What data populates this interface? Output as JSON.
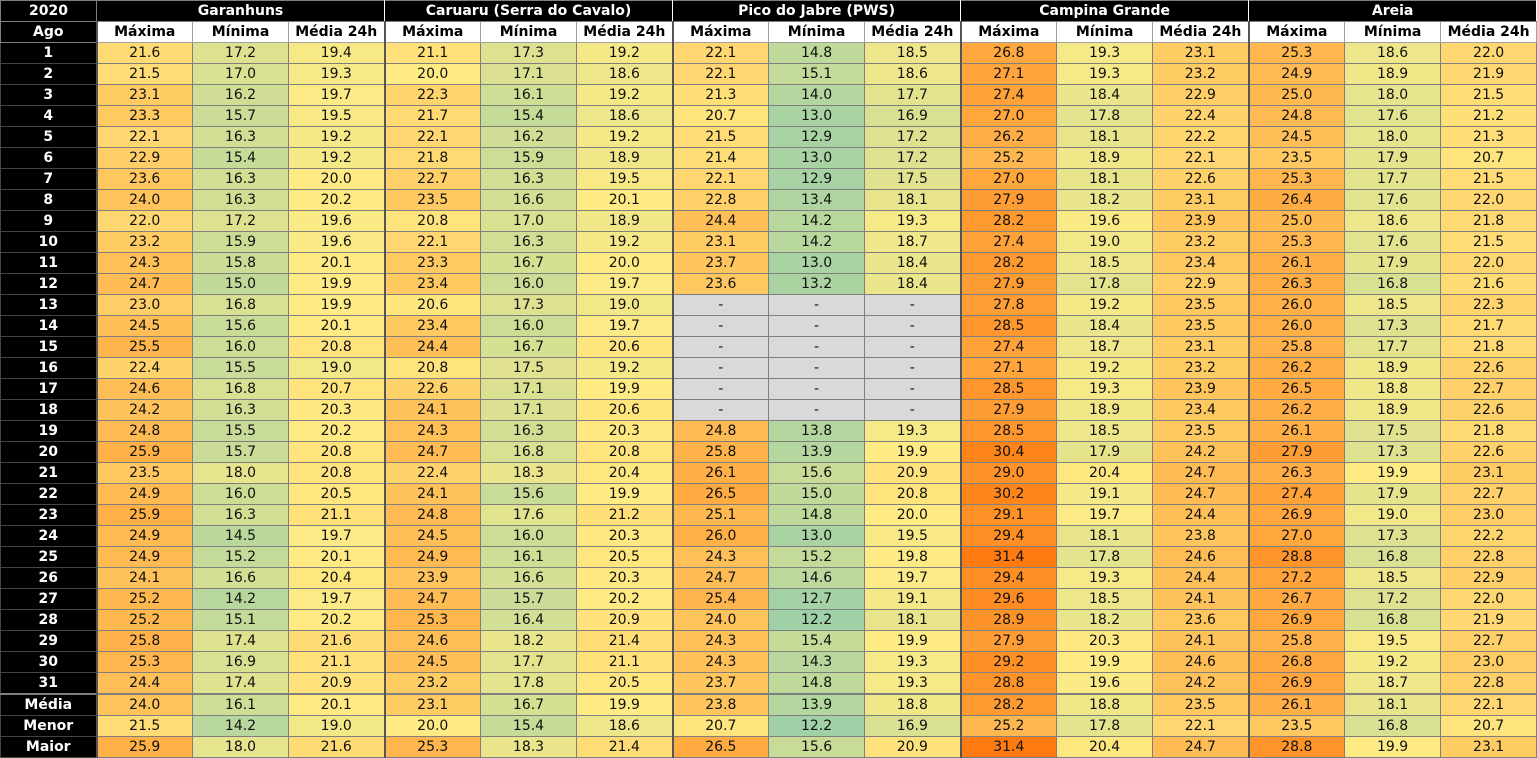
{
  "year": "2020",
  "month": "Ago",
  "subheaders": [
    "Máxima",
    "Mínima",
    "Média 24h"
  ],
  "cities": [
    "Garanhuns",
    "Caruaru (Serra do Cavalo)",
    "Pico do Jabre (PWS)",
    "Campina Grande",
    "Areia"
  ],
  "rows": [
    {
      "label": "1",
      "values": [
        "21.6",
        "17.2",
        "19.4",
        "21.1",
        "17.3",
        "19.2",
        "22.1",
        "14.8",
        "18.5",
        "26.8",
        "19.3",
        "23.1",
        "25.3",
        "18.6",
        "22.0"
      ]
    },
    {
      "label": "2",
      "values": [
        "21.5",
        "17.0",
        "19.3",
        "20.0",
        "17.1",
        "18.6",
        "22.1",
        "15.1",
        "18.6",
        "27.1",
        "19.3",
        "23.2",
        "24.9",
        "18.9",
        "21.9"
      ]
    },
    {
      "label": "3",
      "values": [
        "23.1",
        "16.2",
        "19.7",
        "22.3",
        "16.1",
        "19.2",
        "21.3",
        "14.0",
        "17.7",
        "27.4",
        "18.4",
        "22.9",
        "25.0",
        "18.0",
        "21.5"
      ]
    },
    {
      "label": "4",
      "values": [
        "23.3",
        "15.7",
        "19.5",
        "21.7",
        "15.4",
        "18.6",
        "20.7",
        "13.0",
        "16.9",
        "27.0",
        "17.8",
        "22.4",
        "24.8",
        "17.6",
        "21.2"
      ]
    },
    {
      "label": "5",
      "values": [
        "22.1",
        "16.3",
        "19.2",
        "22.1",
        "16.2",
        "19.2",
        "21.5",
        "12.9",
        "17.2",
        "26.2",
        "18.1",
        "22.2",
        "24.5",
        "18.0",
        "21.3"
      ]
    },
    {
      "label": "6",
      "values": [
        "22.9",
        "15.4",
        "19.2",
        "21.8",
        "15.9",
        "18.9",
        "21.4",
        "13.0",
        "17.2",
        "25.2",
        "18.9",
        "22.1",
        "23.5",
        "17.9",
        "20.7"
      ]
    },
    {
      "label": "7",
      "values": [
        "23.6",
        "16.3",
        "20.0",
        "22.7",
        "16.3",
        "19.5",
        "22.1",
        "12.9",
        "17.5",
        "27.0",
        "18.1",
        "22.6",
        "25.3",
        "17.7",
        "21.5"
      ]
    },
    {
      "label": "8",
      "values": [
        "24.0",
        "16.3",
        "20.2",
        "23.5",
        "16.6",
        "20.1",
        "22.8",
        "13.4",
        "18.1",
        "27.9",
        "18.2",
        "23.1",
        "26.4",
        "17.6",
        "22.0"
      ]
    },
    {
      "label": "9",
      "values": [
        "22.0",
        "17.2",
        "19.6",
        "20.8",
        "17.0",
        "18.9",
        "24.4",
        "14.2",
        "19.3",
        "28.2",
        "19.6",
        "23.9",
        "25.0",
        "18.6",
        "21.8"
      ]
    },
    {
      "label": "10",
      "values": [
        "23.2",
        "15.9",
        "19.6",
        "22.1",
        "16.3",
        "19.2",
        "23.1",
        "14.2",
        "18.7",
        "27.4",
        "19.0",
        "23.2",
        "25.3",
        "17.6",
        "21.5"
      ]
    },
    {
      "label": "11",
      "values": [
        "24.3",
        "15.8",
        "20.1",
        "23.3",
        "16.7",
        "20.0",
        "23.7",
        "13.0",
        "18.4",
        "28.2",
        "18.5",
        "23.4",
        "26.1",
        "17.9",
        "22.0"
      ]
    },
    {
      "label": "12",
      "values": [
        "24.7",
        "15.0",
        "19.9",
        "23.4",
        "16.0",
        "19.7",
        "23.6",
        "13.2",
        "18.4",
        "27.9",
        "17.8",
        "22.9",
        "26.3",
        "16.8",
        "21.6"
      ]
    },
    {
      "label": "13",
      "values": [
        "23.0",
        "16.8",
        "19.9",
        "20.6",
        "17.3",
        "19.0",
        "-",
        "-",
        "-",
        "27.8",
        "19.2",
        "23.5",
        "26.0",
        "18.5",
        "22.3"
      ]
    },
    {
      "label": "14",
      "values": [
        "24.5",
        "15.6",
        "20.1",
        "23.4",
        "16.0",
        "19.7",
        "-",
        "-",
        "-",
        "28.5",
        "18.4",
        "23.5",
        "26.0",
        "17.3",
        "21.7"
      ]
    },
    {
      "label": "15",
      "values": [
        "25.5",
        "16.0",
        "20.8",
        "24.4",
        "16.7",
        "20.6",
        "-",
        "-",
        "-",
        "27.4",
        "18.7",
        "23.1",
        "25.8",
        "17.7",
        "21.8"
      ]
    },
    {
      "label": "16",
      "values": [
        "22.4",
        "15.5",
        "19.0",
        "20.8",
        "17.5",
        "19.2",
        "-",
        "-",
        "-",
        "27.1",
        "19.2",
        "23.2",
        "26.2",
        "18.9",
        "22.6"
      ]
    },
    {
      "label": "17",
      "values": [
        "24.6",
        "16.8",
        "20.7",
        "22.6",
        "17.1",
        "19.9",
        "-",
        "-",
        "-",
        "28.5",
        "19.3",
        "23.9",
        "26.5",
        "18.8",
        "22.7"
      ]
    },
    {
      "label": "18",
      "values": [
        "24.2",
        "16.3",
        "20.3",
        "24.1",
        "17.1",
        "20.6",
        "-",
        "-",
        "-",
        "27.9",
        "18.9",
        "23.4",
        "26.2",
        "18.9",
        "22.6"
      ]
    },
    {
      "label": "19",
      "values": [
        "24.8",
        "15.5",
        "20.2",
        "24.3",
        "16.3",
        "20.3",
        "24.8",
        "13.8",
        "19.3",
        "28.5",
        "18.5",
        "23.5",
        "26.1",
        "17.5",
        "21.8"
      ]
    },
    {
      "label": "20",
      "values": [
        "25.9",
        "15.7",
        "20.8",
        "24.7",
        "16.8",
        "20.8",
        "25.8",
        "13.9",
        "19.9",
        "30.4",
        "17.9",
        "24.2",
        "27.9",
        "17.3",
        "22.6"
      ]
    },
    {
      "label": "21",
      "values": [
        "23.5",
        "18.0",
        "20.8",
        "22.4",
        "18.3",
        "20.4",
        "26.1",
        "15.6",
        "20.9",
        "29.0",
        "20.4",
        "24.7",
        "26.3",
        "19.9",
        "23.1"
      ]
    },
    {
      "label": "22",
      "values": [
        "24.9",
        "16.0",
        "20.5",
        "24.1",
        "15.6",
        "19.9",
        "26.5",
        "15.0",
        "20.8",
        "30.2",
        "19.1",
        "24.7",
        "27.4",
        "17.9",
        "22.7"
      ]
    },
    {
      "label": "23",
      "values": [
        "25.9",
        "16.3",
        "21.1",
        "24.8",
        "17.6",
        "21.2",
        "25.1",
        "14.8",
        "20.0",
        "29.1",
        "19.7",
        "24.4",
        "26.9",
        "19.0",
        "23.0"
      ]
    },
    {
      "label": "24",
      "values": [
        "24.9",
        "14.5",
        "19.7",
        "24.5",
        "16.0",
        "20.3",
        "26.0",
        "13.0",
        "19.5",
        "29.4",
        "18.1",
        "23.8",
        "27.0",
        "17.3",
        "22.2"
      ]
    },
    {
      "label": "25",
      "values": [
        "24.9",
        "15.2",
        "20.1",
        "24.9",
        "16.1",
        "20.5",
        "24.3",
        "15.2",
        "19.8",
        "31.4",
        "17.8",
        "24.6",
        "28.8",
        "16.8",
        "22.8"
      ]
    },
    {
      "label": "26",
      "values": [
        "24.1",
        "16.6",
        "20.4",
        "23.9",
        "16.6",
        "20.3",
        "24.7",
        "14.6",
        "19.7",
        "29.4",
        "19.3",
        "24.4",
        "27.2",
        "18.5",
        "22.9"
      ]
    },
    {
      "label": "27",
      "values": [
        "25.2",
        "14.2",
        "19.7",
        "24.7",
        "15.7",
        "20.2",
        "25.4",
        "12.7",
        "19.1",
        "29.6",
        "18.5",
        "24.1",
        "26.7",
        "17.2",
        "22.0"
      ]
    },
    {
      "label": "28",
      "values": [
        "25.2",
        "15.1",
        "20.2",
        "25.3",
        "16.4",
        "20.9",
        "24.0",
        "12.2",
        "18.1",
        "28.9",
        "18.2",
        "23.6",
        "26.9",
        "16.8",
        "21.9"
      ]
    },
    {
      "label": "29",
      "values": [
        "25.8",
        "17.4",
        "21.6",
        "24.6",
        "18.2",
        "21.4",
        "24.3",
        "15.4",
        "19.9",
        "27.9",
        "20.3",
        "24.1",
        "25.8",
        "19.5",
        "22.7"
      ]
    },
    {
      "label": "30",
      "values": [
        "25.3",
        "16.9",
        "21.1",
        "24.5",
        "17.7",
        "21.1",
        "24.3",
        "14.3",
        "19.3",
        "29.2",
        "19.9",
        "24.6",
        "26.8",
        "19.2",
        "23.0"
      ]
    },
    {
      "label": "31",
      "values": [
        "24.4",
        "17.4",
        "20.9",
        "23.2",
        "17.8",
        "20.5",
        "23.7",
        "14.8",
        "19.3",
        "28.8",
        "19.6",
        "24.2",
        "26.9",
        "18.7",
        "22.8"
      ]
    }
  ],
  "summary": [
    {
      "label": "Média",
      "values": [
        "24.0",
        "16.1",
        "20.1",
        "23.1",
        "16.7",
        "19.9",
        "23.8",
        "13.9",
        "18.8",
        "28.2",
        "18.8",
        "23.5",
        "26.1",
        "18.1",
        "22.1"
      ]
    },
    {
      "label": "Menor",
      "values": [
        "21.5",
        "14.2",
        "19.0",
        "20.0",
        "15.4",
        "18.6",
        "20.7",
        "12.2",
        "16.9",
        "25.2",
        "17.8",
        "22.1",
        "23.5",
        "16.8",
        "20.7"
      ]
    },
    {
      "label": "Maior",
      "values": [
        "25.9",
        "18.0",
        "21.6",
        "25.3",
        "18.3",
        "21.4",
        "26.5",
        "15.6",
        "20.9",
        "31.4",
        "20.4",
        "24.7",
        "28.8",
        "19.9",
        "23.1"
      ]
    }
  ],
  "colors": {
    "missing": "#d9d9d9",
    "scale_low": "#9fd0a6",
    "scale_mid": "#ffeb84",
    "scale_high": "#ff7a10"
  }
}
